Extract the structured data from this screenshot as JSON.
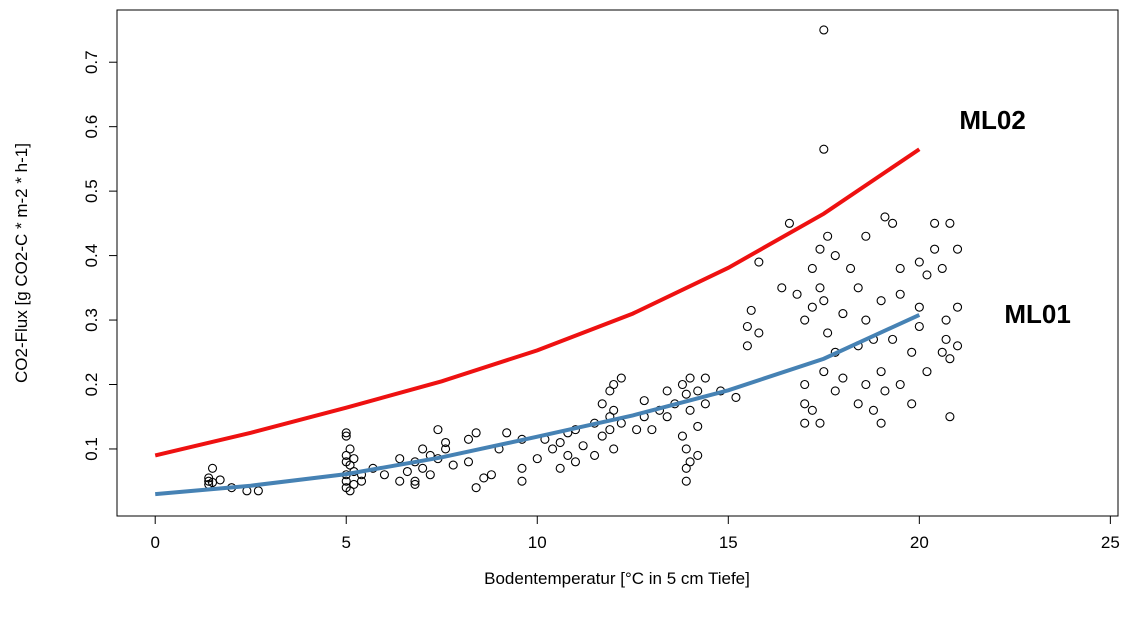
{
  "chart_data": {
    "type": "scatter",
    "x_label": "Bodentemperatur [°C in 5 cm Tiefe]",
    "y_label": "CO2-Flux [g CO2-C * m-2 * h-1]",
    "xlim": [
      -1,
      25.2
    ],
    "ylim": [
      -0.004,
      0.781
    ],
    "xticks": [
      0,
      5,
      10,
      15,
      20,
      25
    ],
    "yticks": [
      0.1,
      0.2,
      0.3,
      0.4,
      0.5,
      0.6,
      0.7
    ],
    "grid": false,
    "points": {
      "color": "#000000",
      "x": [
        1.4,
        1.4,
        1.4,
        1.5,
        1.5,
        1.7,
        2,
        2.4,
        2.7,
        5,
        5,
        5,
        5,
        5,
        5,
        5,
        5.1,
        5.1,
        5.1,
        5.2,
        5.2,
        5.2,
        5.4,
        5.4,
        5.7,
        6,
        6.4,
        6.4,
        6.6,
        6.8,
        6.8,
        6.8,
        7,
        7,
        7.2,
        7.2,
        7.4,
        7.4,
        7.6,
        7.6,
        7.8,
        8.2,
        8.2,
        8.4,
        8.4,
        8.6,
        8.8,
        9,
        9.2,
        9.6,
        9.6,
        9.6,
        10,
        10.2,
        10.4,
        10.6,
        10.6,
        10.8,
        10.8,
        11,
        11,
        11.2,
        11.5,
        11.5,
        11.7,
        11.7,
        11.9,
        11.9,
        11.9,
        12,
        12,
        12,
        12.2,
        12.2,
        12.6,
        12.8,
        12.8,
        13,
        13.2,
        13.4,
        13.4,
        13.6,
        13.8,
        13.8,
        13.9,
        13.9,
        13.9,
        13.9,
        14,
        14,
        14,
        14.2,
        14.2,
        14.2,
        14.4,
        14.4,
        14.8,
        15.2,
        15.5,
        15.5,
        15.6,
        15.8,
        15.8,
        16.4,
        16.6,
        16.8,
        17,
        17,
        17,
        17,
        17.2,
        17.2,
        17.2,
        17.4,
        17.4,
        17.4,
        17.5,
        17.5,
        17.5,
        17.5,
        17.6,
        17.6,
        17.8,
        17.8,
        17.8,
        18,
        18,
        18.2,
        18.4,
        18.4,
        18.4,
        18.6,
        18.6,
        18.6,
        18.8,
        18.8,
        19,
        19,
        19,
        19.1,
        19.1,
        19.3,
        19.3,
        19.5,
        19.5,
        19.5,
        19.8,
        19.8,
        20,
        20,
        20,
        20.2,
        20.2,
        20.4,
        20.4,
        20.6,
        20.6,
        20.7,
        20.7,
        20.8,
        20.8,
        20.8,
        21,
        21,
        21
      ],
      "y": [
        0.045,
        0.05,
        0.055,
        0.07,
        0.048,
        0.052,
        0.04,
        0.035,
        0.035,
        0.125,
        0.12,
        0.09,
        0.08,
        0.06,
        0.05,
        0.04,
        0.1,
        0.075,
        0.035,
        0.085,
        0.065,
        0.045,
        0.06,
        0.05,
        0.07,
        0.06,
        0.085,
        0.05,
        0.065,
        0.08,
        0.05,
        0.045,
        0.1,
        0.07,
        0.09,
        0.06,
        0.13,
        0.085,
        0.1,
        0.11,
        0.075,
        0.115,
        0.08,
        0.125,
        0.04,
        0.055,
        0.06,
        0.1,
        0.125,
        0.115,
        0.07,
        0.05,
        0.085,
        0.115,
        0.1,
        0.07,
        0.11,
        0.125,
        0.09,
        0.13,
        0.08,
        0.105,
        0.14,
        0.09,
        0.17,
        0.12,
        0.19,
        0.15,
        0.13,
        0.2,
        0.16,
        0.1,
        0.21,
        0.14,
        0.13,
        0.175,
        0.15,
        0.13,
        0.16,
        0.19,
        0.15,
        0.17,
        0.2,
        0.12,
        0.185,
        0.1,
        0.07,
        0.05,
        0.21,
        0.16,
        0.08,
        0.135,
        0.19,
        0.09,
        0.21,
        0.17,
        0.19,
        0.18,
        0.26,
        0.29,
        0.315,
        0.39,
        0.28,
        0.35,
        0.45,
        0.34,
        0.3,
        0.2,
        0.17,
        0.14,
        0.32,
        0.38,
        0.16,
        0.41,
        0.35,
        0.14,
        0.75,
        0.565,
        0.33,
        0.22,
        0.43,
        0.28,
        0.4,
        0.25,
        0.19,
        0.31,
        0.21,
        0.38,
        0.35,
        0.26,
        0.17,
        0.43,
        0.3,
        0.2,
        0.27,
        0.16,
        0.33,
        0.22,
        0.14,
        0.46,
        0.19,
        0.45,
        0.27,
        0.38,
        0.34,
        0.2,
        0.25,
        0.17,
        0.39,
        0.32,
        0.29,
        0.37,
        0.22,
        0.45,
        0.41,
        0.38,
        0.25,
        0.3,
        0.27,
        0.45,
        0.24,
        0.15,
        0.41,
        0.32,
        0.26
      ]
    },
    "series": [
      {
        "name": "ML02",
        "color": "#ee1111",
        "x": [
          0,
          2.5,
          5,
          7.5,
          10,
          12.5,
          15,
          17.5,
          20
        ],
        "values": [
          0.09,
          0.125,
          0.164,
          0.205,
          0.253,
          0.31,
          0.381,
          0.465,
          0.565
        ]
      },
      {
        "name": "ML01",
        "color": "#4682b4",
        "x": [
          0,
          2.5,
          5,
          7.5,
          10,
          12.5,
          15,
          17.5,
          20
        ],
        "values": [
          0.03,
          0.043,
          0.061,
          0.087,
          0.119,
          0.152,
          0.191,
          0.24,
          0.308
        ]
      }
    ]
  }
}
